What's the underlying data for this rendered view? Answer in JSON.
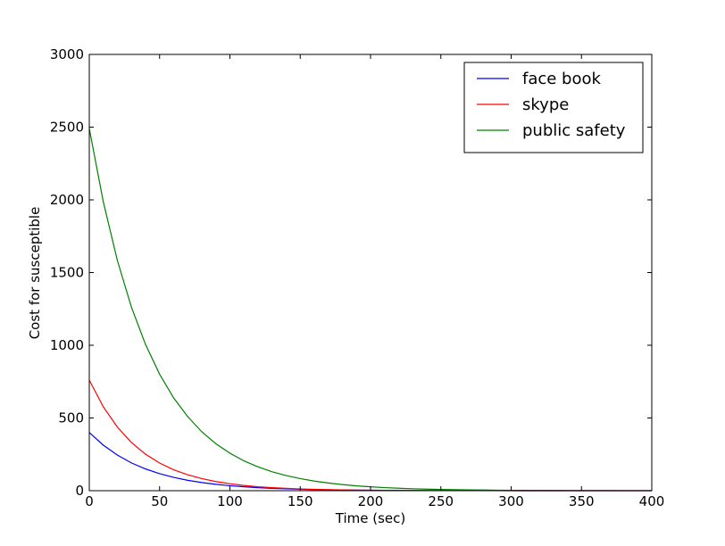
{
  "chart_data": {
    "type": "line",
    "xlabel": "Time (sec)",
    "ylabel": "Cost for susceptible",
    "x": [
      0,
      10,
      20,
      30,
      40,
      50,
      60,
      70,
      80,
      90,
      100,
      110,
      120,
      130,
      140,
      150,
      160,
      170,
      180,
      190,
      200,
      210,
      220,
      230,
      240,
      250,
      260,
      270,
      280,
      290,
      300,
      310,
      320,
      330,
      340,
      350,
      360,
      370,
      380,
      390,
      400
    ],
    "series": [
      {
        "name": "face book",
        "color": "#0000ff",
        "values": [
          400,
          313,
          244.5,
          191,
          149.5,
          117,
          91.4,
          71.5,
          55.9,
          43.7,
          34.2,
          26.7,
          20.9,
          16.3,
          12.8,
          10,
          7.8,
          6.1,
          4.8,
          3.7,
          2.9,
          2.3,
          1.8,
          1.4,
          1.1,
          0.85,
          0.67,
          0.52,
          0.41,
          0.32,
          0.25,
          0.19,
          0.15,
          0.12,
          0.09,
          0.07,
          0.06,
          0.04,
          0.03,
          0.03,
          0.02
        ]
      },
      {
        "name": "skype",
        "color": "#ff0000",
        "values": [
          760,
          576,
          437,
          331,
          251,
          190,
          144,
          109,
          83,
          63,
          48,
          36,
          27,
          21,
          16,
          12,
          9.1,
          6.9,
          5.2,
          4,
          3,
          2.3,
          1.7,
          1.3,
          1,
          0.76,
          0.58,
          0.44,
          0.33,
          0.25,
          0.19,
          0.14,
          0.11,
          0.08,
          0.06,
          0.05,
          0.04,
          0.03,
          0.02,
          0.02,
          0.01
        ]
      },
      {
        "name": "public safety",
        "color": "#008000",
        "values": [
          2490,
          1985,
          1582,
          1261,
          1005,
          801,
          638,
          509,
          405,
          323,
          258,
          205,
          164,
          130,
          104,
          83,
          66,
          53,
          42,
          33,
          27,
          21,
          17,
          13.5,
          10.8,
          8.6,
          6.8,
          5.5,
          4.4,
          3.5,
          2.8,
          2.2,
          1.7,
          1.4,
          1.1,
          0.88,
          0.7,
          0.56,
          0.45,
          0.36,
          0.28
        ]
      }
    ],
    "xlim": [
      0,
      400
    ],
    "xticks": [
      0,
      50,
      100,
      150,
      200,
      250,
      300,
      350,
      400
    ],
    "ylim": [
      0,
      3000
    ],
    "yticks": [
      0,
      500,
      1000,
      1500,
      2000,
      2500,
      3000
    ],
    "legend": "upper right"
  }
}
